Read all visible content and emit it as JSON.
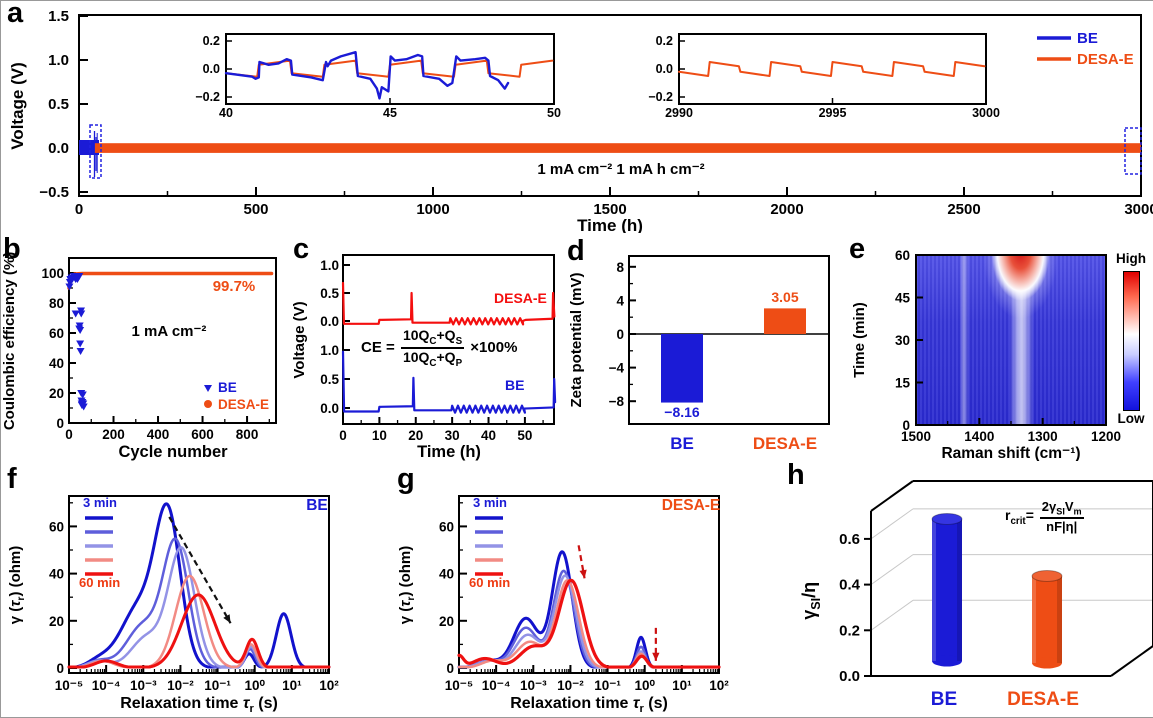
{
  "chart_data": [
    {
      "panel": "a",
      "type": "line",
      "xlabel": "Time (h)",
      "ylabel": "Voltage (V)",
      "xlim": [
        0,
        3000
      ],
      "ylim": [
        -0.5,
        1.5
      ],
      "xticks": [
        "0",
        "500",
        "1000",
        "1500",
        "2000",
        "2500",
        "3000"
      ],
      "yticks": [
        "1.5",
        "1.0",
        "0.5",
        "0.0",
        "−0.5"
      ],
      "legend": [
        {
          "label": "BE",
          "color": "#1b1bd6"
        },
        {
          "label": "DESA-E",
          "color": "#ee4d15"
        }
      ],
      "annotation": "1 mA cm⁻²   1 mA h cm⁻²",
      "series": [
        {
          "name": "BE",
          "x_range_h": [
            0,
            55
          ],
          "amplitude_V": 0.08
        },
        {
          "name": "DESA-E",
          "x_range_h": [
            45,
            3000
          ],
          "amplitude_V": 0.055
        }
      ],
      "inset1": {
        "xlim": [
          40,
          50
        ],
        "xticks": [
          "40",
          "45",
          "50"
        ],
        "yticks": [
          "0.2",
          "0.0",
          "−0.2"
        ],
        "be_points": [
          [
            40,
            -0.03
          ],
          [
            40.8,
            -0.055
          ],
          [
            40.9,
            -0.07
          ],
          [
            41,
            -0.06
          ],
          [
            41.02,
            0.05
          ],
          [
            41.3,
            0.03
          ],
          [
            41.6,
            0.04
          ],
          [
            41.85,
            0.07
          ],
          [
            41.98,
            0.06
          ],
          [
            42.02,
            -0.04
          ],
          [
            42.6,
            -0.06
          ],
          [
            42.95,
            -0.08
          ],
          [
            43.05,
            0.05
          ],
          [
            43.1,
            0.02
          ],
          [
            43.2,
            0.06
          ],
          [
            43.5,
            0.09
          ],
          [
            43.95,
            0.12
          ],
          [
            44.02,
            -0.05
          ],
          [
            44.4,
            -0.07
          ],
          [
            44.6,
            -0.14
          ],
          [
            44.68,
            -0.21
          ],
          [
            44.75,
            -0.13
          ],
          [
            44.95,
            -0.16
          ],
          [
            45.02,
            0.09
          ],
          [
            45.15,
            0.06
          ],
          [
            45.5,
            0.07
          ],
          [
            45.85,
            0.1
          ],
          [
            45.98,
            0.09
          ],
          [
            46.02,
            -0.05
          ],
          [
            46.5,
            -0.07
          ],
          [
            46.75,
            -0.12
          ],
          [
            46.9,
            -0.1
          ],
          [
            47.02,
            0.09
          ],
          [
            47.15,
            0.06
          ],
          [
            47.6,
            0.07
          ],
          [
            47.9,
            0.08
          ],
          [
            48.0,
            0.06
          ],
          [
            48.05,
            -0.05
          ],
          [
            48.3,
            -0.08
          ],
          [
            48.5,
            -0.14
          ],
          [
            48.6,
            -0.1
          ]
        ],
        "desae_wave": {
          "start": 40,
          "end": 50,
          "period_h": 2,
          "low_V": [
            -0.03,
            -0.055
          ],
          "high_V": [
            0.03,
            0.06
          ]
        }
      },
      "inset2": {
        "xlim": [
          2990,
          3000
        ],
        "xticks": [
          "2990",
          "2995",
          "3000"
        ],
        "yticks": [
          "0.2",
          "0.0",
          "−0.2"
        ],
        "desae_wave": {
          "start": 2990,
          "end": 3000,
          "period_h": 2,
          "low_V": [
            -0.02,
            -0.05
          ],
          "high_V": [
            0.05,
            0.02
          ]
        }
      }
    },
    {
      "panel": "b",
      "type": "scatter",
      "xlabel": "Cycle number",
      "ylabel": "Coulombic efficiency (%)",
      "xlim": [
        0,
        930
      ],
      "ylim": [
        0,
        110
      ],
      "xticks": [
        "0",
        "200",
        "400",
        "600",
        "800"
      ],
      "yticks": [
        "0",
        "20",
        "40",
        "60",
        "80",
        "100"
      ],
      "annotation": "1 mA cm⁻²",
      "efficiency_label": "99.7%",
      "legend": [
        {
          "label": "BE",
          "color": "#1b1bd6",
          "marker": "triangle-down"
        },
        {
          "label": "DESA-E",
          "color": "#ee4d15",
          "marker": "circle"
        }
      ],
      "be_points": [
        [
          2,
          91
        ],
        [
          4,
          94
        ],
        [
          6,
          96
        ],
        [
          9,
          95
        ],
        [
          12,
          97
        ],
        [
          15,
          96
        ],
        [
          18,
          97
        ],
        [
          22,
          98
        ],
        [
          26,
          97
        ],
        [
          30,
          96
        ],
        [
          30,
          73
        ],
        [
          34,
          97
        ],
        [
          38,
          96
        ],
        [
          42,
          97
        ],
        [
          46,
          98
        ],
        [
          46,
          63
        ],
        [
          48,
          65
        ],
        [
          50,
          62
        ],
        [
          50,
          53
        ],
        [
          52,
          48
        ],
        [
          54,
          75
        ],
        [
          55,
          73
        ],
        [
          55,
          20
        ],
        [
          56,
          15
        ],
        [
          57,
          13
        ],
        [
          58,
          12
        ],
        [
          60,
          14
        ],
        [
          62,
          19
        ],
        [
          64,
          13
        ],
        [
          66,
          11
        ]
      ],
      "desae_line": [
        [
          0,
          90
        ],
        [
          10,
          97
        ],
        [
          25,
          99.3
        ],
        [
          60,
          99.7
        ],
        [
          910,
          99.7
        ]
      ]
    },
    {
      "panel": "c",
      "type": "line",
      "xlabel": "Time (h)",
      "ylabel": "Voltage (V)",
      "xlim": [
        0,
        58.5
      ],
      "xticks": [
        "0",
        "10",
        "20",
        "30",
        "40",
        "50"
      ],
      "ytick_sets": {
        "top": [
          "1.0",
          "0.5",
          "0.0"
        ],
        "bottom": [
          "1.0",
          "0.5",
          "0.0"
        ]
      },
      "trace_labels": [
        {
          "label": "DESA-E",
          "color": "#f40f0f"
        },
        {
          "label": "BE",
          "color": "#1b1bd6"
        }
      ],
      "formula": {
        "lhs": "CE =",
        "num": [
          "10Q",
          "C",
          "+Q",
          "S"
        ],
        "den": [
          "10Q",
          "C",
          "+Q",
          "P"
        ],
        "suffix": "×100%"
      },
      "red_pre": [
        [
          0,
          0.68
        ],
        [
          0.25,
          -0.05
        ],
        [
          9.8,
          -0.05
        ],
        [
          10,
          0.02
        ],
        [
          18.7,
          0.03
        ],
        [
          18.85,
          0.5
        ],
        [
          19.1,
          -0.03
        ],
        [
          29.3,
          -0.03
        ]
      ],
      "red_teeth": {
        "from": 29.5,
        "to": 49,
        "period": 1.6,
        "hi": 0.05,
        "lo": -0.06
      },
      "red_post": [
        [
          49.4,
          0.0
        ],
        [
          50.2,
          0.02
        ],
        [
          57.6,
          0.04
        ],
        [
          57.75,
          0.5
        ],
        [
          58.1,
          0.08
        ]
      ],
      "blue_pre": [
        [
          0,
          0.97
        ],
        [
          0.3,
          -0.06
        ],
        [
          9.8,
          -0.06
        ],
        [
          10,
          0.02
        ],
        [
          19.2,
          0.03
        ],
        [
          19.35,
          0.52
        ],
        [
          19.6,
          -0.04
        ],
        [
          29.8,
          -0.04
        ]
      ],
      "blue_teeth": {
        "from": 30,
        "to": 49.4,
        "period": 1.6,
        "hi": 0.04,
        "lo": -0.08
      },
      "blue_post": [
        [
          49.8,
          -0.01
        ],
        [
          57.9,
          0.01
        ],
        [
          58.05,
          0.5
        ],
        [
          58.3,
          0.1
        ]
      ]
    },
    {
      "panel": "d",
      "type": "bar",
      "ylabel": "Zeta potential (mV)",
      "yticks": [
        "8",
        "4",
        "0",
        "−4",
        "−8"
      ],
      "ylim": [
        -10,
        9
      ],
      "categories": [
        {
          "label": "BE",
          "color": "#1b1bd6"
        },
        {
          "label": "DESA-E",
          "color": "#ee4d15"
        }
      ],
      "values": [
        -8.16,
        3.05
      ],
      "value_labels": [
        "−8.16",
        "3.05"
      ]
    },
    {
      "panel": "e",
      "type": "heatmap",
      "xlabel": "Raman shift (cm⁻¹)",
      "ylabel": "Time (min)",
      "xticks": [
        "1500",
        "1400",
        "1300",
        "1200"
      ],
      "yticks": [
        "0",
        "15",
        "30",
        "45",
        "60"
      ],
      "x_range_cm1": [
        1500,
        1200
      ],
      "y_range_min": [
        0,
        60
      ],
      "colorbar": {
        "high": "High",
        "low": "Low"
      },
      "features": [
        {
          "type": "band",
          "center_cm1": 1335,
          "note": "white band, red hotspot from ~45 to 60 min"
        },
        {
          "type": "band",
          "center_cm1": 1425,
          "note": "faint white band"
        }
      ]
    },
    {
      "panel": "f",
      "type": "line",
      "title": "BE",
      "title_color": "#1b1bd6",
      "xlabel_parts": {
        "pre": "Relaxation time ",
        "tau": "τ",
        "sub": "r",
        "post": " (s)"
      },
      "ylabel_parts": {
        "g1": "γ (",
        "tau": "τ",
        "sub": "r",
        "g2": ") (ohm)"
      },
      "xticks": [
        "10⁻⁵",
        "10⁻⁴",
        "10⁻³",
        "10⁻²",
        "10⁻¹",
        "10⁰",
        "10¹",
        "10²"
      ],
      "yticks": [
        "0",
        "20",
        "40",
        "60"
      ],
      "legend": {
        "start": "3 min",
        "end": "60 min"
      },
      "series": [
        {
          "time_label": "3 min",
          "color": "#1212cc",
          "width": 3,
          "peaks": [
            [
              -2.33,
              0.34,
              61
            ],
            [
              -3.1,
              0.5,
              26
            ],
            [
              0.78,
              0.2,
              23
            ],
            [
              -0.15,
              0.13,
              6
            ],
            [
              -4.2,
              0.3,
              3
            ]
          ]
        },
        {
          "time_label": "",
          "color": "#5e5edb",
          "width": 2.5,
          "peaks": [
            [
              -2.12,
              0.34,
              52
            ],
            [
              -3.0,
              0.45,
              18
            ],
            [
              -0.12,
              0.13,
              8
            ],
            [
              -4.2,
              0.3,
              3
            ]
          ]
        },
        {
          "time_label": "",
          "color": "#9393e6",
          "width": 2.5,
          "peaks": [
            [
              -1.97,
              0.35,
              50
            ],
            [
              -2.9,
              0.42,
              13
            ],
            [
              -0.1,
              0.14,
              9
            ],
            [
              -4.2,
              0.3,
              3
            ]
          ]
        },
        {
          "time_label": "",
          "color": "#f28b84",
          "width": 2.5,
          "peaks": [
            [
              -1.75,
              0.38,
              39
            ],
            [
              -0.1,
              0.15,
              10
            ],
            [
              -4.1,
              0.3,
              3
            ]
          ]
        },
        {
          "time_label": "60 min",
          "color": "#ee1111",
          "width": 3,
          "peaks": [
            [
              -1.52,
              0.45,
              31
            ],
            [
              -0.07,
              0.16,
              12
            ],
            [
              -4.0,
              0.3,
              3
            ]
          ]
        }
      ],
      "arrows": [
        {
          "from": [
            -2.3,
            64
          ],
          "to": [
            -0.65,
            19
          ],
          "color": "#111111"
        }
      ]
    },
    {
      "panel": "g",
      "type": "line",
      "title": "DESA-E",
      "title_color": "#ee4d15",
      "xlabel_parts": {
        "pre": "Relaxation time ",
        "tau": "τ",
        "sub": "r",
        "post": " (s)"
      },
      "ylabel_parts": {
        "g1": "γ (",
        "tau": "τ",
        "sub": "r",
        "g2": ") (ohm)"
      },
      "xticks": [
        "10⁻⁵",
        "10⁻⁴",
        "10⁻³",
        "10⁻²",
        "10⁻¹",
        "10⁰",
        "10¹",
        "10²"
      ],
      "yticks": [
        "0",
        "20",
        "40",
        "60"
      ],
      "legend": {
        "start": "3 min",
        "end": "60 min"
      },
      "series": [
        {
          "time_label": "3 min",
          "color": "#1212cc",
          "width": 3,
          "peaks": [
            [
              -2.22,
              0.27,
              49
            ],
            [
              -3.2,
              0.33,
              21
            ],
            [
              -0.1,
              0.12,
              13
            ],
            [
              -4.2,
              0.3,
              3
            ]
          ]
        },
        {
          "time_label": "",
          "color": "#5e5edb",
          "width": 2.5,
          "peaks": [
            [
              -2.18,
              0.28,
              41
            ],
            [
              -3.2,
              0.33,
              17
            ],
            [
              -0.1,
              0.12,
              9
            ],
            [
              -4.2,
              0.3,
              3
            ]
          ]
        },
        {
          "time_label": "",
          "color": "#9393e6",
          "width": 2.5,
          "peaks": [
            [
              -2.14,
              0.29,
              39
            ],
            [
              -3.15,
              0.34,
              14
            ],
            [
              -0.1,
              0.12,
              7
            ],
            [
              -4.2,
              0.3,
              3
            ]
          ]
        },
        {
          "time_label": "",
          "color": "#f28b84",
          "width": 2.5,
          "peaks": [
            [
              -2.08,
              0.3,
              37
            ],
            [
              -3.1,
              0.35,
              11
            ],
            [
              -0.1,
              0.13,
              6
            ],
            [
              -4.1,
              0.3,
              3
            ]
          ]
        },
        {
          "time_label": "60 min",
          "color": "#ee1111",
          "width": 3.2,
          "peaks": [
            [
              -1.98,
              0.33,
              37
            ],
            [
              -3.0,
              0.36,
              9
            ],
            [
              -0.08,
              0.14,
              5
            ],
            [
              -4.3,
              0.32,
              4
            ],
            [
              -5.0,
              0.12,
              5
            ]
          ]
        }
      ],
      "arrows": [
        {
          "from": [
            -1.78,
            52
          ],
          "to": [
            -1.62,
            38
          ],
          "color": "#cc1111"
        },
        {
          "from": [
            0.3,
            17
          ],
          "to": [
            0.3,
            3
          ],
          "color": "#cc1111"
        }
      ]
    },
    {
      "panel": "h",
      "type": "bar3d",
      "ylabel_parts": {
        "g": "γ",
        "sub": "SI",
        "rest": "/η"
      },
      "yticks": [
        "0.0",
        "0.2",
        "0.4",
        "0.6"
      ],
      "categories": [
        {
          "label": "BE",
          "color": "#1b1bd6"
        },
        {
          "label": "DESA-E",
          "color": "#ee4d15"
        }
      ],
      "values": [
        0.7,
        0.45
      ],
      "formula": {
        "r": "r",
        "sub": "crit",
        "eq": "=",
        "num_a": "2γ",
        "num_a_sub": "SI",
        "num_b": "V",
        "num_b_sub": "m",
        "den": "nF|η|"
      }
    }
  ]
}
